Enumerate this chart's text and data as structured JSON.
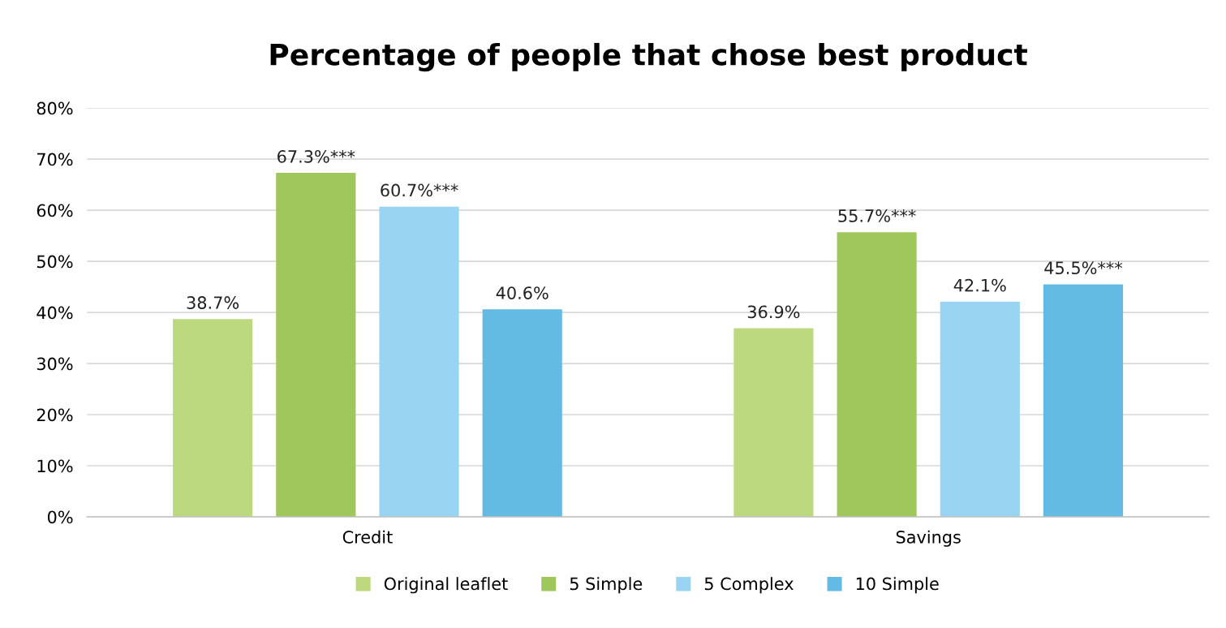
{
  "chart_data": {
    "type": "bar",
    "title": "Percentage of people that chose best product",
    "categories": [
      "Credit",
      "Savings"
    ],
    "series": [
      {
        "name": "Original leaflet",
        "color": "#bdd97f",
        "values": [
          38.7,
          36.9
        ],
        "value_labels": [
          "38.7%",
          "36.9%"
        ]
      },
      {
        "name": "5 Simple",
        "color": "#9fc75c",
        "values": [
          67.3,
          55.7
        ],
        "value_labels": [
          "67.3%***",
          "55.7%***"
        ]
      },
      {
        "name": "5 Complex",
        "color": "#99d5f2",
        "values": [
          60.7,
          42.1
        ],
        "value_labels": [
          "60.7%***",
          "42.1%"
        ]
      },
      {
        "name": "10 Simple",
        "color": "#63bae3",
        "values": [
          40.6,
          45.5
        ],
        "value_labels": [
          "40.6%",
          "45.5%***"
        ]
      }
    ],
    "ylim": [
      0,
      80
    ],
    "yticks": [
      {
        "value": 0,
        "label": "0%"
      },
      {
        "value": 10,
        "label": "10%"
      },
      {
        "value": 20,
        "label": "20%"
      },
      {
        "value": 30,
        "label": "30%"
      },
      {
        "value": 40,
        "label": "40%"
      },
      {
        "value": 50,
        "label": "50%"
      },
      {
        "value": 60,
        "label": "60%"
      },
      {
        "value": 70,
        "label": "70%"
      },
      {
        "value": 80,
        "label": "80%"
      }
    ],
    "grid": "y",
    "legend": "bottom"
  }
}
